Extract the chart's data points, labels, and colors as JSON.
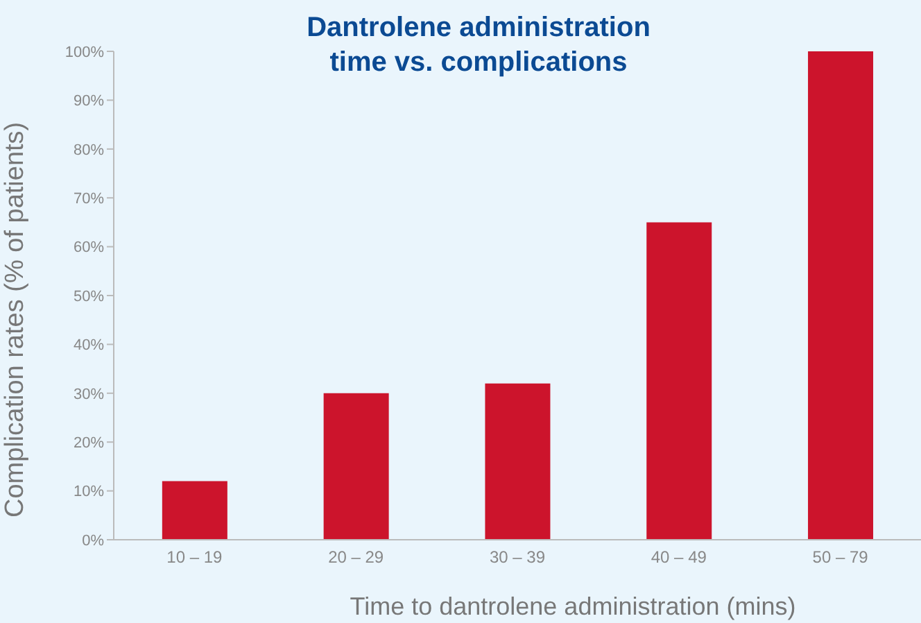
{
  "chart_data": {
    "type": "bar",
    "title": "Dantrolene administration time vs. complications",
    "xlabel": "Time to dantrolene administration (mins)",
    "ylabel": "Complication rates (% of patients)",
    "categories": [
      "10 – 19",
      "20 – 29",
      "30 – 39",
      "40 – 49",
      "50 – 79"
    ],
    "values": [
      12,
      30,
      32,
      65,
      100
    ],
    "color": "#cc142c",
    "ylim": [
      0,
      100
    ],
    "yticks": [
      {
        "value": 0,
        "label": "0%"
      },
      {
        "value": 10,
        "label": "10%"
      },
      {
        "value": 20,
        "label": "20%"
      },
      {
        "value": 30,
        "label": "30%"
      },
      {
        "value": 40,
        "label": "40%"
      },
      {
        "value": 50,
        "label": "50%"
      },
      {
        "value": 60,
        "label": "60%"
      },
      {
        "value": 70,
        "label": "70%"
      },
      {
        "value": 80,
        "label": "80%"
      },
      {
        "value": 90,
        "label": "90%"
      },
      {
        "value": 100,
        "label": "100%"
      }
    ],
    "grid": false,
    "legend": false
  }
}
